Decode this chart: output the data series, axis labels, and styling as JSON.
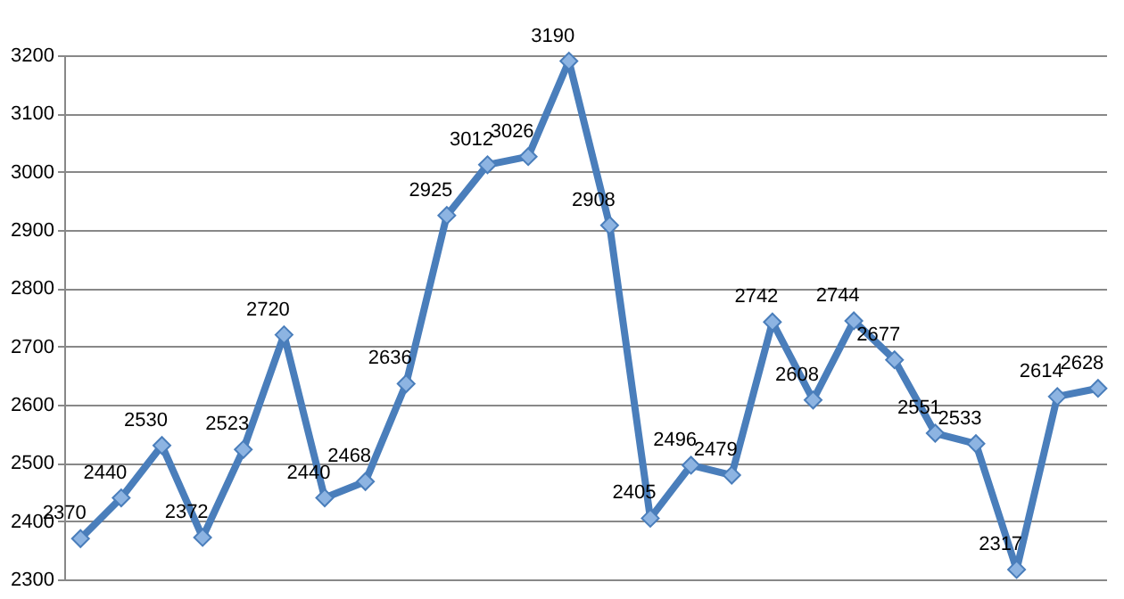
{
  "chart_data": {
    "type": "line",
    "categories": [
      null,
      null,
      null,
      null,
      null,
      null,
      null,
      null,
      null,
      null,
      null,
      null,
      null,
      null,
      null,
      null,
      null,
      null,
      null,
      null,
      null,
      null,
      null,
      null,
      null,
      null
    ],
    "series": [
      {
        "color": "#4a7ebb",
        "values": [
          2370,
          2440,
          2530,
          2372,
          2523,
          2720,
          2440,
          2468,
          2636,
          2925,
          3012,
          3026,
          3190,
          2908,
          2405,
          2496,
          2479,
          2742,
          2608,
          2744,
          2677,
          2551,
          2533,
          2317,
          2614,
          2628
        ]
      }
    ],
    "ylim": [
      2300,
      3200
    ],
    "yticks": [
      2300,
      2400,
      2500,
      2600,
      2700,
      2800,
      2900,
      3000,
      3100,
      3200
    ],
    "grid": "y",
    "marker": "diamond",
    "line_style": "solid",
    "data_labels": true,
    "tick_labels": "y",
    "legend": false
  }
}
